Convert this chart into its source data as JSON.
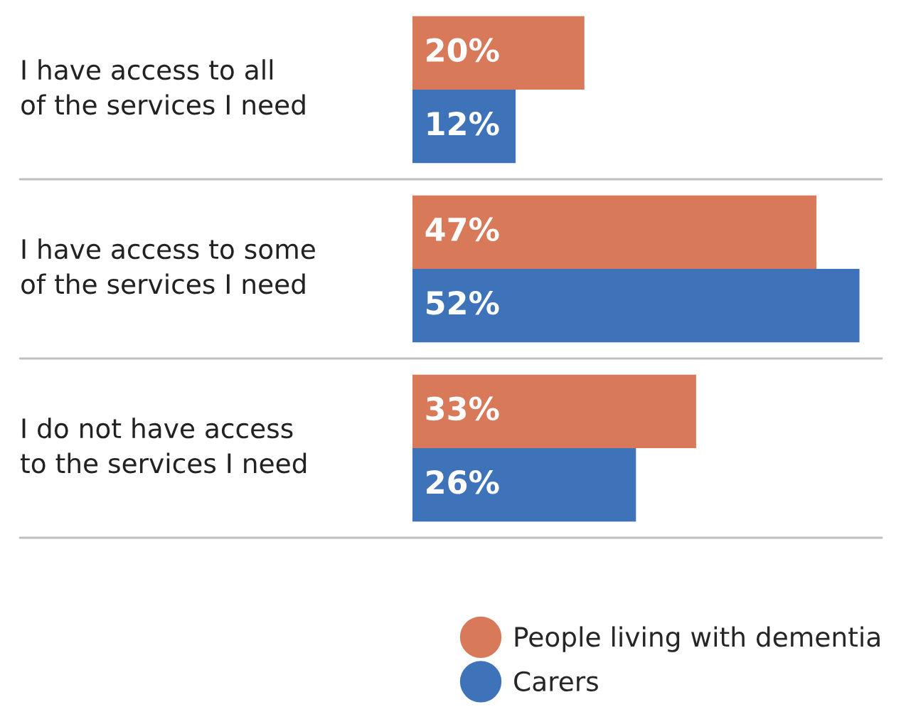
{
  "chart_data": {
    "type": "bar",
    "orientation": "horizontal",
    "categories": [
      "I have access to all\nof the services I need",
      "I have access to some\nof the services I need",
      "I do not have access\nto the services I need"
    ],
    "series": [
      {
        "name": "People living with dementia",
        "color": "#d8795a",
        "values": [
          20,
          47,
          33
        ],
        "value_labels": [
          "20%",
          "47%",
          "33%"
        ]
      },
      {
        "name": "Carers",
        "color": "#3e72b9",
        "values": [
          12,
          52,
          26
        ],
        "value_labels": [
          "12%",
          "52%",
          "26%"
        ]
      }
    ],
    "grid": "y",
    "legend": "bottom right",
    "marker": "circle",
    "tick_labels": "y"
  }
}
